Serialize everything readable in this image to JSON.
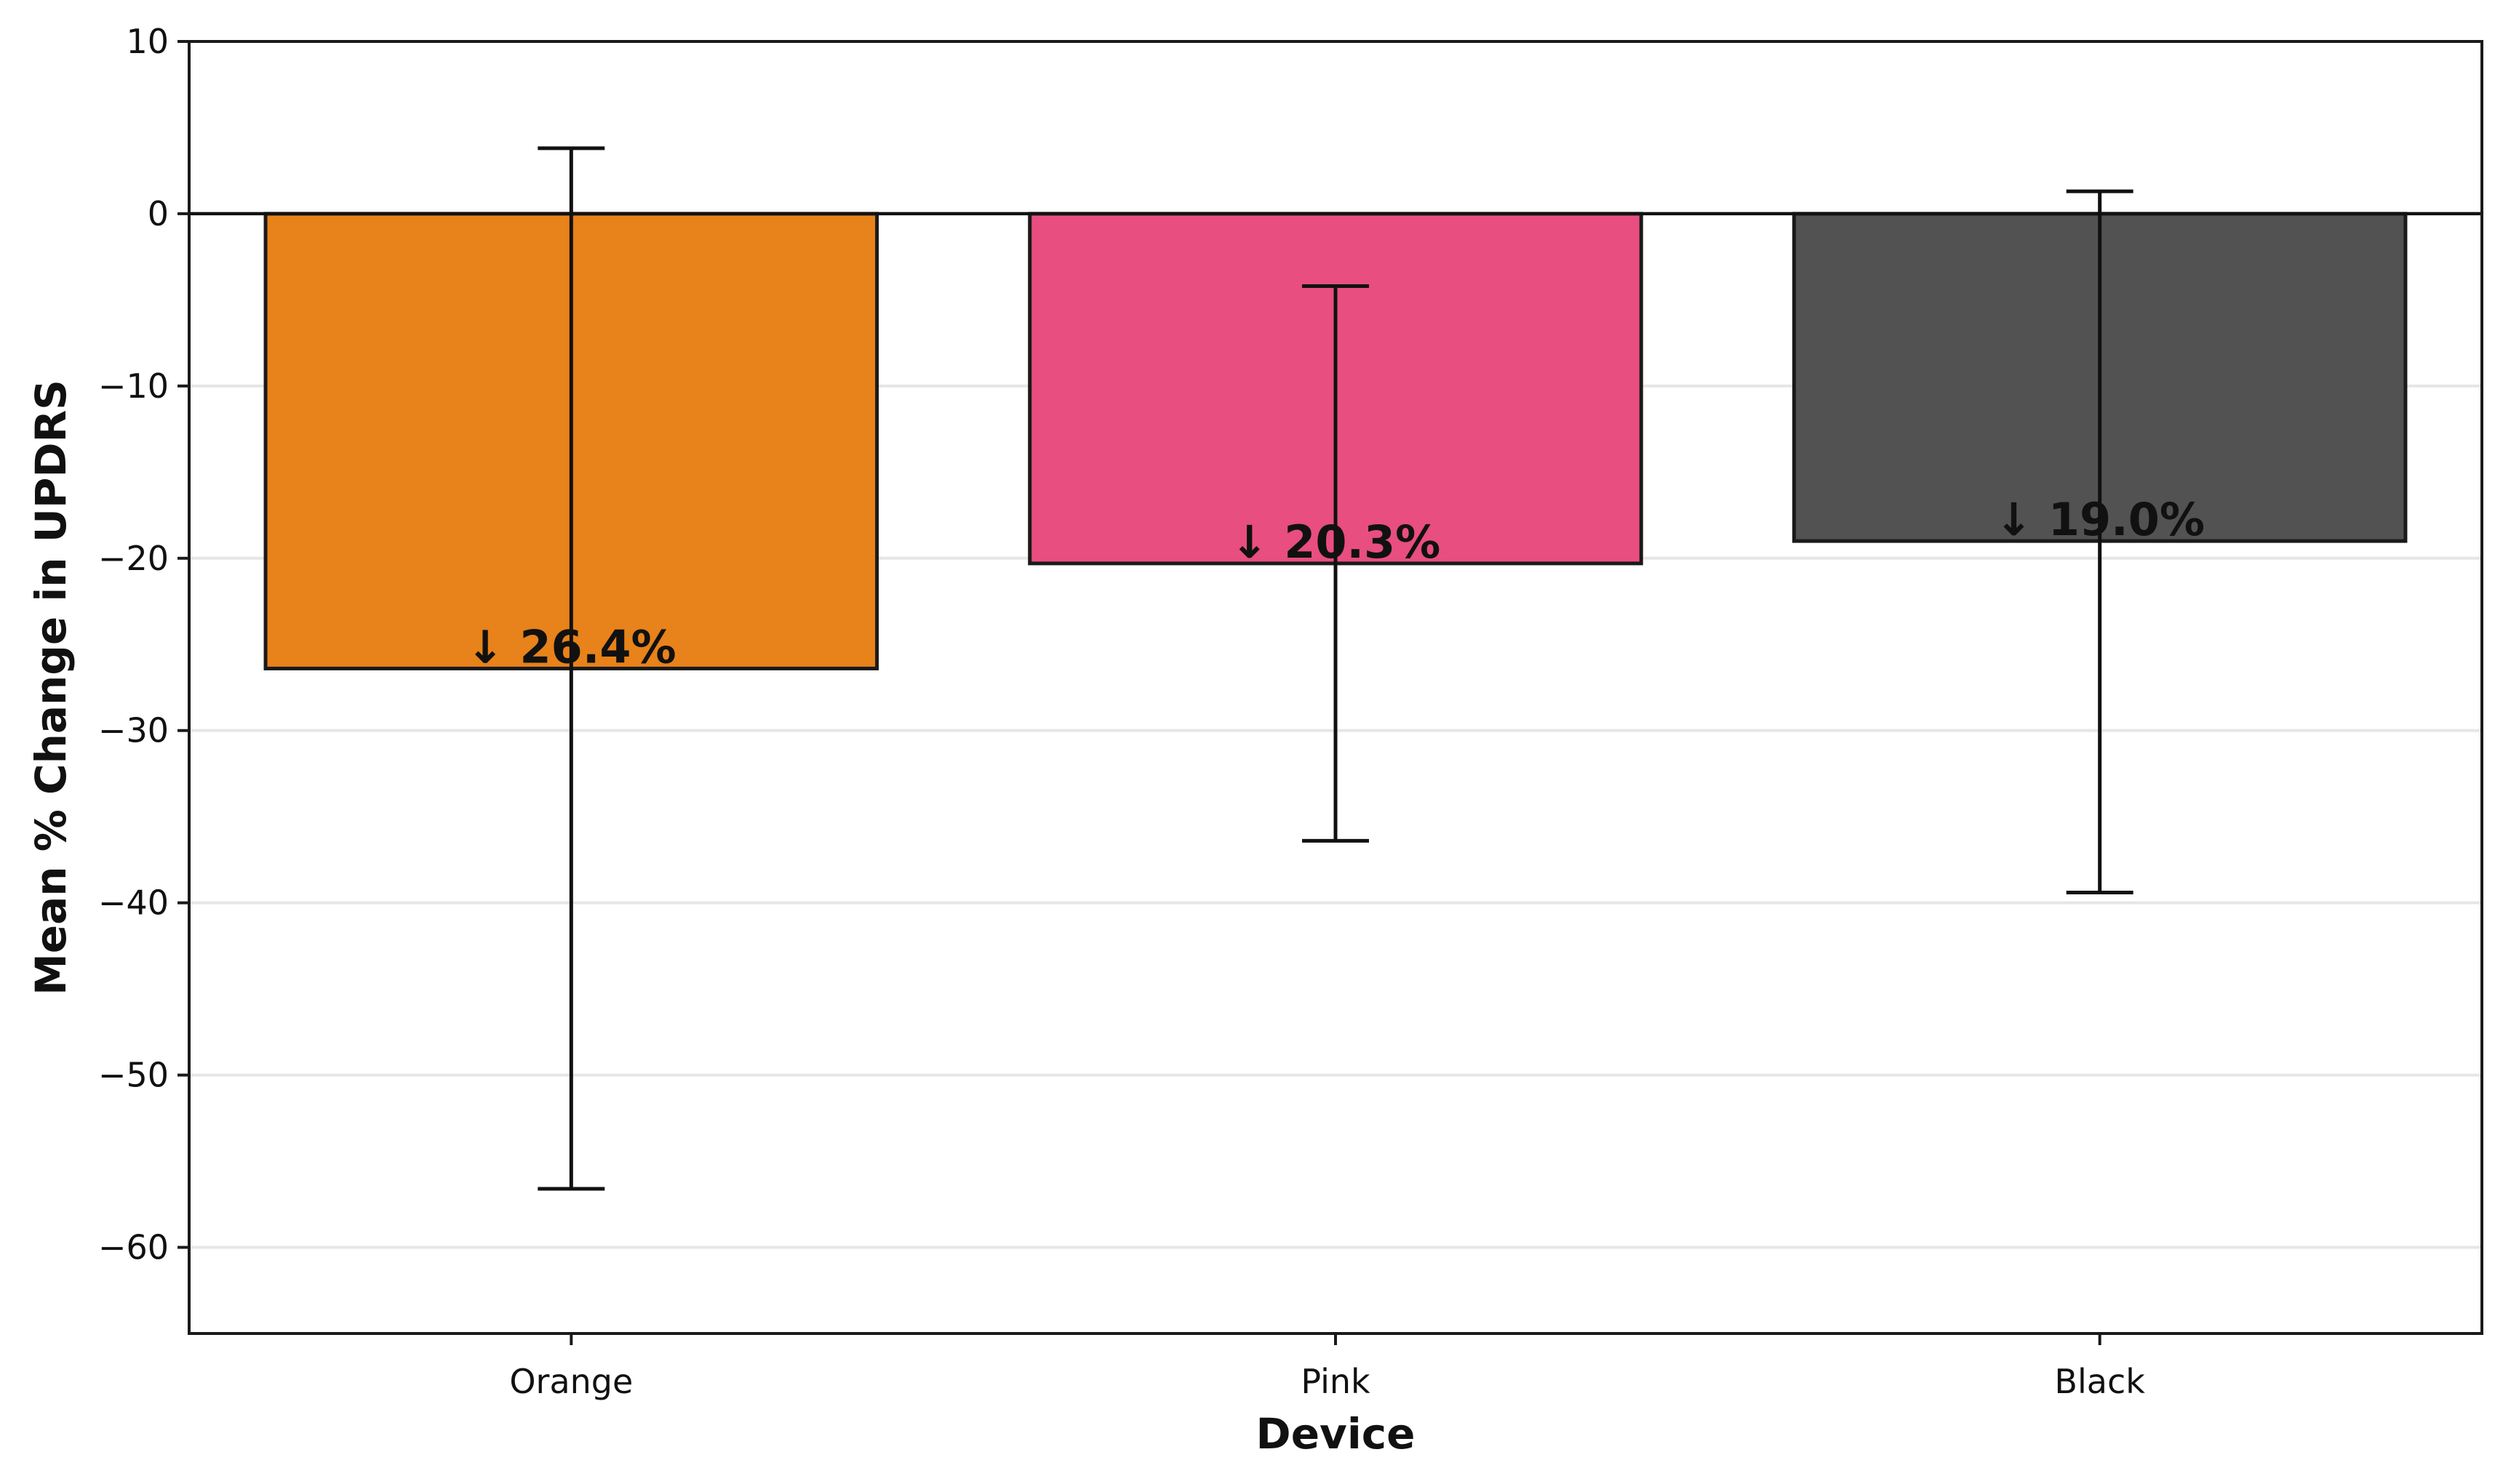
{
  "chart_data": {
    "type": "bar",
    "title": "",
    "xlabel": "Device",
    "ylabel": "Mean % Change in UPDRS",
    "categories": [
      "Orange",
      "Pink",
      "Black"
    ],
    "values": [
      -26.4,
      -20.3,
      -19.0
    ],
    "error_bars": [
      {
        "low": -56.6,
        "high": 3.8
      },
      {
        "low": -36.4,
        "high": -4.2
      },
      {
        "low": -39.4,
        "high": 1.3
      }
    ],
    "value_labels": [
      "↓ 26.4%",
      "↓ 20.3%",
      "↓ 19.0%"
    ],
    "colors": [
      "#E8821A",
      "#E84E80",
      "#525252"
    ],
    "edge_color": "#1a1a1a",
    "ylim": [
      -65,
      10
    ],
    "yticks": [
      10,
      0,
      -10,
      -20,
      -30,
      -40,
      -50,
      -60
    ],
    "ytick_labels": [
      "10",
      "0",
      "−10",
      "−20",
      "−30",
      "−40",
      "−50",
      "−60"
    ],
    "grid": "horizontal",
    "zero_line": true
  }
}
